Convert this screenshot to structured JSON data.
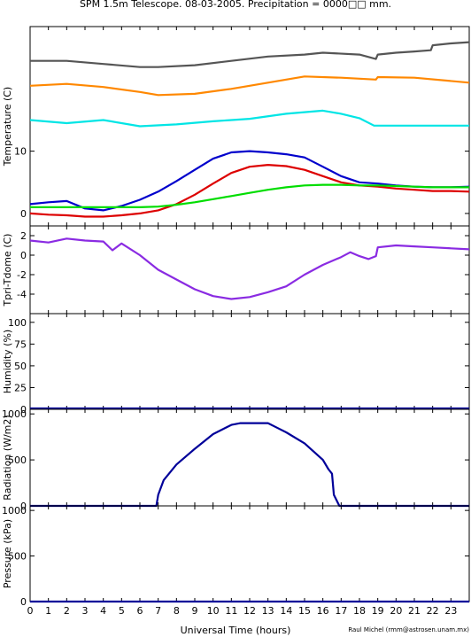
{
  "title": "SPM 1.5m Telescope. 08-03-2005. Precipitation = 0000□□ mm.",
  "xlabel": "Universal Time (hours)",
  "credit": "Raul Michel (rmm@astrosen.unam.mx)",
  "x_ticks": [
    "0",
    "1",
    "2",
    "3",
    "4",
    "5",
    "6",
    "7",
    "8",
    "9",
    "10",
    "11",
    "12",
    "13",
    "14",
    "15",
    "16",
    "17",
    "18",
    "19",
    "20",
    "21",
    "22",
    "23"
  ],
  "colors": {
    "dark": "#555555",
    "orange": "#ff8800",
    "cyan": "#00e5e5",
    "blue": "#0000cc",
    "red": "#dd0000",
    "green": "#00dd00",
    "purple": "#8a2be2",
    "navy": "#000099"
  },
  "chart_data": [
    {
      "type": "line",
      "ylabel": "Temperature (C)",
      "ylim": [
        -2,
        30
      ],
      "yticks": [
        "0",
        "10"
      ],
      "ytick_values": [
        0,
        10
      ],
      "series": [
        {
          "color": "dark",
          "x": [
            0,
            2,
            4,
            6,
            7,
            9,
            11,
            13,
            15,
            16,
            18,
            18.9,
            19,
            20,
            21,
            21.9,
            22,
            23,
            24
          ],
          "y": [
            24.5,
            24.5,
            24,
            23.5,
            23.5,
            23.8,
            24.5,
            25.2,
            25.5,
            25.8,
            25.5,
            24.8,
            25.5,
            25.8,
            26,
            26.2,
            27,
            27.3,
            27.5
          ]
        },
        {
          "color": "orange",
          "x": [
            0,
            2,
            4,
            6,
            7,
            9,
            11,
            13,
            15,
            17,
            18.9,
            19,
            21,
            24
          ],
          "y": [
            20.5,
            20.8,
            20.3,
            19.5,
            19,
            19.2,
            20,
            21,
            22,
            21.8,
            21.5,
            21.9,
            21.8,
            21
          ]
        },
        {
          "color": "cyan",
          "x": [
            0,
            2,
            4,
            6,
            8,
            10,
            12,
            14,
            16,
            17,
            18,
            18.8,
            19,
            24
          ],
          "y": [
            15,
            14.5,
            15,
            14,
            14.3,
            14.8,
            15.2,
            16,
            16.5,
            16,
            15.3,
            14.1,
            14.1,
            14.1
          ]
        },
        {
          "color": "blue",
          "x": [
            0,
            1,
            2,
            3,
            4,
            5,
            6,
            7,
            8,
            9,
            10,
            11,
            12,
            13,
            14,
            15,
            16,
            17,
            18,
            19,
            20,
            21,
            22,
            23,
            24
          ],
          "y": [
            1.5,
            1.8,
            2,
            0.8,
            0.5,
            1.2,
            2.2,
            3.5,
            5.2,
            7,
            8.8,
            9.8,
            10,
            9.8,
            9.5,
            9,
            7.5,
            6,
            5,
            4.8,
            4.5,
            4.3,
            4.2,
            4.2,
            4.3
          ]
        },
        {
          "color": "red",
          "x": [
            0,
            1,
            2,
            3,
            4,
            5,
            6,
            7,
            8,
            9,
            10,
            11,
            12,
            13,
            14,
            15,
            16,
            17,
            18,
            19,
            20,
            21,
            22,
            23,
            24
          ],
          "y": [
            0,
            -0.2,
            -0.3,
            -0.5,
            -0.5,
            -0.3,
            0,
            0.5,
            1.5,
            3,
            4.8,
            6.5,
            7.5,
            7.8,
            7.6,
            7,
            6,
            5,
            4.5,
            4.3,
            4,
            3.8,
            3.6,
            3.6,
            3.5
          ]
        },
        {
          "color": "green",
          "x": [
            0,
            1,
            2,
            3,
            4,
            5,
            6,
            7,
            8,
            9,
            10,
            11,
            12,
            13,
            14,
            15,
            16,
            17,
            18,
            19,
            20,
            21,
            22,
            23,
            24
          ],
          "y": [
            1,
            1,
            1,
            1,
            1,
            1,
            1,
            1.1,
            1.4,
            1.8,
            2.3,
            2.8,
            3.3,
            3.8,
            4.2,
            4.5,
            4.6,
            4.6,
            4.5,
            4.5,
            4.4,
            4.3,
            4.2,
            4.2,
            4.2
          ]
        }
      ]
    },
    {
      "type": "line",
      "ylabel": "Tpri-Tdome (C)",
      "ylim": [
        -6,
        3
      ],
      "yticks": [
        "2",
        "0",
        "-2",
        "-4"
      ],
      "ytick_values": [
        2,
        0,
        -2,
        -4
      ],
      "series": [
        {
          "color": "purple",
          "x": [
            0,
            1,
            2,
            3,
            4,
            4.5,
            5,
            6,
            7,
            8,
            9,
            10,
            11,
            12,
            13,
            14,
            15,
            16,
            17,
            17.5,
            18,
            18.5,
            18.9,
            19,
            20,
            21,
            22,
            23,
            24
          ],
          "y": [
            1.5,
            1.3,
            1.7,
            1.5,
            1.4,
            0.5,
            1.2,
            0,
            -1.5,
            -2.5,
            -3.5,
            -4.2,
            -4.5,
            -4.3,
            -3.8,
            -3.2,
            -2,
            -1,
            -0.2,
            0.3,
            -0.1,
            -0.4,
            -0.1,
            0.8,
            1,
            0.9,
            0.8,
            0.7,
            0.6
          ]
        }
      ]
    },
    {
      "type": "line",
      "ylabel": "Humidity (%)",
      "ylim": [
        0,
        110
      ],
      "yticks": [
        "0",
        "25",
        "50",
        "75",
        "100"
      ],
      "ytick_values": [
        0,
        25,
        50,
        75,
        100
      ],
      "series": [
        {
          "color": "navy",
          "x": [
            0,
            24
          ],
          "y": [
            1,
            1
          ]
        }
      ]
    },
    {
      "type": "line",
      "ylabel": "Radiation (W/m2)",
      "ylim": [
        0,
        1050
      ],
      "yticks": [
        "0",
        "500",
        "1000"
      ],
      "ytick_values": [
        0,
        500,
        1000
      ],
      "series": [
        {
          "color": "navy",
          "x": [
            0,
            6.9,
            7,
            7.3,
            8,
            9,
            10,
            11,
            11.5,
            12,
            13,
            13.5,
            14,
            15,
            16,
            16.3,
            16.5,
            16.6,
            16.9,
            24
          ],
          "y": [
            0,
            0,
            120,
            280,
            450,
            620,
            780,
            880,
            900,
            900,
            900,
            850,
            800,
            680,
            500,
            400,
            350,
            120,
            0,
            0
          ]
        }
      ]
    },
    {
      "type": "line",
      "ylabel": "Pressure (kPa)",
      "ylim": [
        0,
        1050
      ],
      "yticks": [
        "0",
        "500",
        "1000"
      ],
      "ytick_values": [
        0,
        500,
        1000
      ],
      "series": [
        {
          "color": "navy",
          "x": [
            0,
            24
          ],
          "y": [
            0,
            0
          ]
        }
      ]
    }
  ]
}
